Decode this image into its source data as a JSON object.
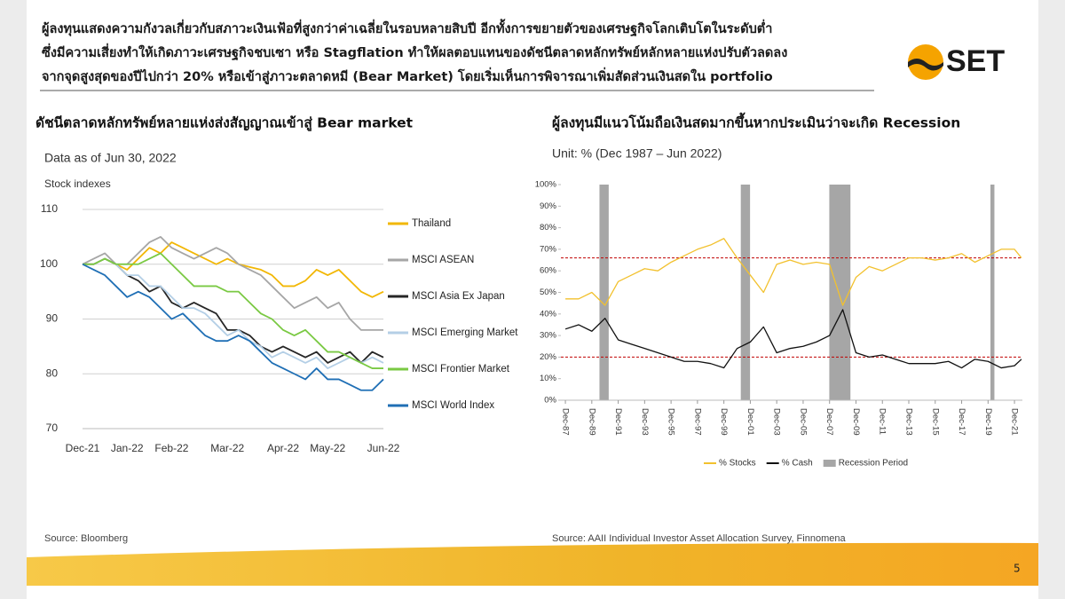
{
  "header": {
    "lines": [
      "ผู้ลงทุนแสดงความกังวลเกี่ยวกับสภาวะเงินเฟ้อที่สูงกว่าค่าเฉลี่ยในรอบหลายสิบปี อีกทั้งการขยายตัวของเศรษฐกิจโลกเติบโตในระดับต่ำ",
      "ซึ่งมีความเสี่ยงทำให้เกิดภาวะเศรษฐกิจชบเซา หรือ Stagflation ทำให้ผลตอบแทนของดัชนีตลาดหลักทรัพย์หลักหลายแห่งปรับตัวลดลง",
      "จากจุดสูงสุดของปีไปกว่า 20% หรือเข้าสู่ภาวะตลาดหมี (Bear Market) โดยเริ่มเห็นการพิจารณาเพิ่มสัดส่วนเงินสดใน portfolio"
    ],
    "logo": "SET"
  },
  "chart_data": [
    {
      "type": "line",
      "title": "ดัชนีตลาดหลักทรัพย์หลายแห่งส่งสัญญาณเข้าสู่ Bear market",
      "subtitle": "Data as of Jun 30, 2022",
      "y_label": "Stock indexes",
      "categories": [
        "Dec-21",
        null,
        null,
        null,
        "Jan-22",
        null,
        null,
        null,
        "Feb-22",
        null,
        null,
        null,
        null,
        "Mar-22",
        null,
        null,
        null,
        null,
        "Apr-22",
        null,
        null,
        null,
        "May-22",
        null,
        null,
        null,
        null,
        "Jun-22"
      ],
      "ylim": [
        70,
        110
      ],
      "yticks": [
        70,
        80,
        90,
        100,
        110
      ],
      "grid": true,
      "legend": "right",
      "series": [
        {
          "name": "Thailand",
          "color": "#f2b705",
          "values": [
            100,
            100,
            101,
            100,
            99,
            101,
            103,
            102,
            104,
            103,
            102,
            101,
            100,
            101,
            100,
            99.5,
            99,
            98,
            96,
            96,
            97,
            99,
            98,
            99,
            97,
            95,
            94,
            95
          ]
        },
        {
          "name": "MSCI ASEAN",
          "color": "#a6a6a6",
          "values": [
            100,
            101,
            102,
            100,
            100,
            102,
            104,
            105,
            103,
            102,
            101,
            102,
            103,
            102,
            100,
            99,
            98,
            96,
            94,
            92,
            93,
            94,
            92,
            93,
            90,
            88,
            88,
            88
          ]
        },
        {
          "name": "MSCI Asia Ex Japan",
          "color": "#262626",
          "values": [
            100,
            100,
            101,
            100,
            98,
            97,
            95,
            96,
            93,
            92,
            93,
            92,
            91,
            88,
            88,
            87,
            85,
            84,
            85,
            84,
            83,
            84,
            82,
            83,
            84,
            82,
            84,
            83
          ]
        },
        {
          "name": "MSCI Emerging Market",
          "color": "#b4cfe6",
          "values": [
            100,
            100,
            101,
            100,
            98,
            98,
            96,
            96,
            94,
            92,
            92,
            91,
            89,
            87,
            88,
            86,
            85,
            83,
            84,
            83,
            82,
            83,
            81,
            82,
            83,
            82,
            83,
            82
          ]
        },
        {
          "name": "MSCI Frontier Market",
          "color": "#7ac943",
          "values": [
            100,
            100,
            101,
            100,
            100,
            100,
            101,
            102,
            100,
            98,
            96,
            96,
            96,
            95,
            95,
            93,
            91,
            90,
            88,
            87,
            88,
            86,
            84,
            84,
            83,
            82,
            81,
            81
          ]
        },
        {
          "name": "MSCI World Index",
          "color": "#1f6fb5",
          "values": [
            100,
            99,
            98,
            96,
            94,
            95,
            94,
            92,
            90,
            91,
            89,
            87,
            86,
            86,
            87,
            86,
            84,
            82,
            81,
            80,
            79,
            81,
            79,
            79,
            78,
            77,
            77,
            79
          ]
        }
      ],
      "source": "Source: Bloomberg"
    },
    {
      "type": "line",
      "title": "ผู้ลงทุนมีแนวโน้มถือเงินสดมากขึ้นหากประเมินว่าจะเกิด  Recession",
      "subtitle": "Unit: %  (Dec 1987 – Jun 2022)",
      "x": [
        1987.92,
        1988.92,
        1989.92,
        1990.92,
        1991.92,
        1992.92,
        1993.92,
        1994.92,
        1995.92,
        1996.92,
        1997.92,
        1998.92,
        1999.92,
        2000.92,
        2001.92,
        2002.92,
        2003.92,
        2004.92,
        2005.92,
        2006.92,
        2007.92,
        2008.92,
        2009.92,
        2010.92,
        2011.92,
        2012.92,
        2013.92,
        2014.92,
        2015.92,
        2016.92,
        2017.92,
        2018.92,
        2019.92,
        2020.92,
        2021.92,
        2022.45
      ],
      "xlim": [
        1987.58,
        2022.52
      ],
      "xticks": [
        {
          "value": 1987.92,
          "label": "Dec-87"
        },
        {
          "value": 1989.92,
          "label": "Dec-89"
        },
        {
          "value": 1991.92,
          "label": "Dec-91"
        },
        {
          "value": 1993.92,
          "label": "Dec-93"
        },
        {
          "value": 1995.92,
          "label": "Dec-95"
        },
        {
          "value": 1997.92,
          "label": "Dec-97"
        },
        {
          "value": 1999.92,
          "label": "Dec-99"
        },
        {
          "value": 2001.92,
          "label": "Dec-01"
        },
        {
          "value": 2003.92,
          "label": "Dec-03"
        },
        {
          "value": 2005.92,
          "label": "Dec-05"
        },
        {
          "value": 2007.92,
          "label": "Dec-07"
        },
        {
          "value": 2009.92,
          "label": "Dec-09"
        },
        {
          "value": 2011.92,
          "label": "Dec-11"
        },
        {
          "value": 2013.92,
          "label": "Dec-13"
        },
        {
          "value": 2015.92,
          "label": "Dec-15"
        },
        {
          "value": 2017.92,
          "label": "Dec-17"
        },
        {
          "value": 2019.92,
          "label": "Dec-19"
        },
        {
          "value": 2021.92,
          "label": "Dec-21"
        }
      ],
      "ylim": [
        0,
        100
      ],
      "yticks": [
        {
          "value": 0,
          "label": "0%"
        },
        {
          "value": 10,
          "label": "10%"
        },
        {
          "value": 20,
          "label": "20%"
        },
        {
          "value": 30,
          "label": "30%"
        },
        {
          "value": 40,
          "label": "40%"
        },
        {
          "value": 50,
          "label": "50%"
        },
        {
          "value": 60,
          "label": "60%"
        },
        {
          "value": 70,
          "label": "70%"
        },
        {
          "value": 80,
          "label": "80%"
        },
        {
          "value": 90,
          "label": "90%"
        },
        {
          "value": 100,
          "label": "100%"
        }
      ],
      "grid": false,
      "legend": "bottom",
      "recessions": [
        [
          1990.5,
          1991.2
        ],
        [
          2001.2,
          2001.9
        ],
        [
          2007.9,
          2009.5
        ],
        [
          2020.1,
          2020.4
        ]
      ],
      "recession_name": "Recession Period",
      "recession_color": "#a6a6a6",
      "reference_lines": [
        66,
        20
      ],
      "reference_color": "#c00000",
      "series": [
        {
          "name": "% Stocks",
          "color": "#f2c12e",
          "values": [
            47,
            47,
            50,
            44,
            55,
            58,
            61,
            60,
            64,
            67,
            70,
            72,
            75,
            66,
            58,
            50,
            63,
            65,
            63,
            64,
            63,
            44,
            57,
            62,
            60,
            63,
            66,
            66,
            65,
            66,
            68,
            64,
            67,
            70,
            70,
            66
          ]
        },
        {
          "name": "% Cash",
          "color": "#111111",
          "values": [
            33,
            35,
            32,
            38,
            28,
            26,
            24,
            22,
            20,
            18,
            18,
            17,
            15,
            24,
            27,
            34,
            22,
            24,
            25,
            27,
            30,
            42,
            22,
            20,
            21,
            19,
            17,
            17,
            17,
            18,
            15,
            19,
            18,
            15,
            16,
            19
          ]
        }
      ],
      "source": "Source: AAII Individual Investor Asset Allocation Survey, Finnomena"
    }
  ],
  "page_number": "5"
}
